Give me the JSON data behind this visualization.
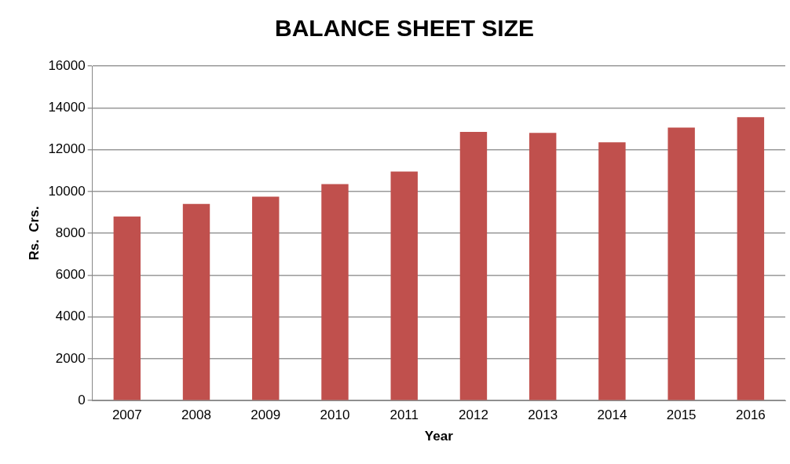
{
  "chart_data": {
    "type": "bar",
    "title": "BALANCE SHEET SIZE",
    "xlabel": "Year",
    "ylabel": "Rs.  Crs.",
    "categories": [
      "2007",
      "2008",
      "2009",
      "2010",
      "2011",
      "2012",
      "2013",
      "2014",
      "2015",
      "2016"
    ],
    "values": [
      8800,
      9400,
      9750,
      10350,
      10950,
      12850,
      12800,
      12350,
      13050,
      13550
    ],
    "color": "#c0504d",
    "ylim": [
      0,
      16000
    ],
    "yticks": [
      0,
      2000,
      4000,
      6000,
      8000,
      10000,
      12000,
      14000,
      16000
    ],
    "grid": "y",
    "legend": false
  }
}
